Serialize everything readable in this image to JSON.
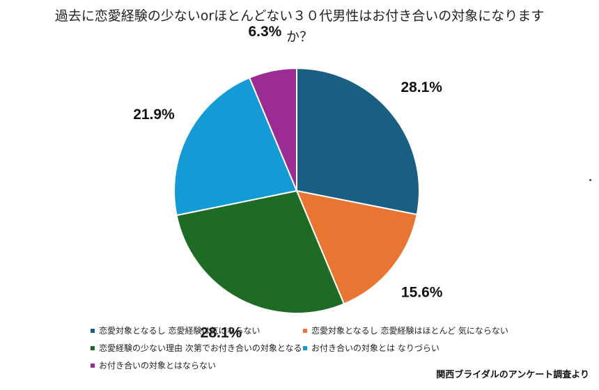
{
  "chart_data": {
    "type": "pie",
    "title": "過去に恋愛経験の少ないorほとんどない３０代男性はお付き合いの対象になりますか？",
    "slices": [
      {
        "label": "恋愛対象となるし 恋愛経験は気にならない",
        "value": 28.1,
        "value_label": "28.1%",
        "color": "#1a5f82"
      },
      {
        "label": "恋愛対象となるし 恋愛経験はほとんど 気にならない",
        "value": 15.6,
        "value_label": "15.6%",
        "color": "#e97532"
      },
      {
        "label": "恋愛経験の少ない理由 次第でお付き合いの対象となる",
        "value": 28.1,
        "value_label": "28.1%",
        "color": "#1e6b25"
      },
      {
        "label": "お付き合いの対象とは なりづらい",
        "value": 21.9,
        "value_label": "21.9%",
        "color": "#149bd6"
      },
      {
        "label": "お付き合いの対象とはならない",
        "value": 6.3,
        "value_label": "6.3%",
        "color": "#9b2c94"
      }
    ],
    "legend_position": "bottom"
  },
  "source_note": "関西ブライダルのアンケート調査より"
}
